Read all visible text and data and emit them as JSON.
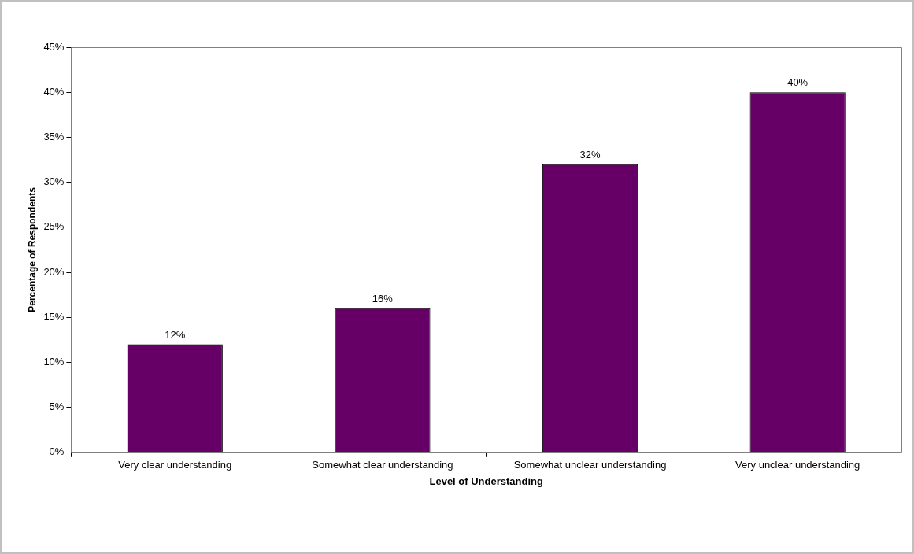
{
  "chart_data": {
    "type": "bar",
    "xlabel": "Level of Understanding",
    "ylabel": "Percentage of Respondents",
    "categories": [
      "Very clear understanding",
      "Somewhat clear understanding",
      "Somewhat unclear understanding",
      "Very unclear understanding"
    ],
    "values": [
      12,
      16,
      32,
      40
    ],
    "color": "#660066",
    "value_labels": [
      "12%",
      "16%",
      "32%",
      "40%"
    ],
    "ylim": [
      0,
      45
    ],
    "yticks": [
      {
        "value": 0,
        "label": "0%"
      },
      {
        "value": 5,
        "label": "5%"
      },
      {
        "value": 10,
        "label": "10%"
      },
      {
        "value": 15,
        "label": "15%"
      },
      {
        "value": 20,
        "label": "20%"
      },
      {
        "value": 25,
        "label": "25%"
      },
      {
        "value": 30,
        "label": "30%"
      },
      {
        "value": 35,
        "label": "35%"
      },
      {
        "value": 40,
        "label": "40%"
      },
      {
        "value": 45,
        "label": "45%"
      }
    ],
    "grid": false,
    "legend": false
  }
}
